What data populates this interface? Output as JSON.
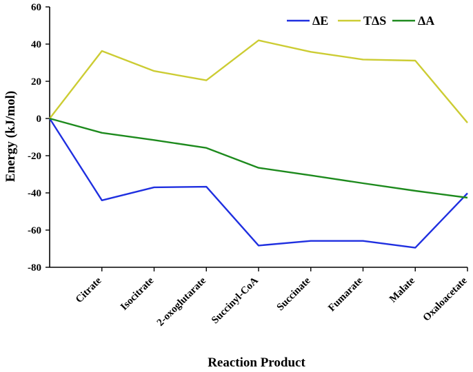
{
  "chart_data": {
    "type": "line",
    "title": "",
    "xlabel": "Reaction  Product",
    "ylabel": "Energy (kJ/mol)",
    "ylim": [
      -80,
      60
    ],
    "yticks": [
      "-80",
      "-60",
      "-40",
      "-20",
      "0",
      "20",
      "40",
      "60"
    ],
    "categories": [
      "",
      "Citrate",
      "Isocitrate",
      "2-oxoglutarate",
      "Succinyl-CoA",
      "Succinate",
      "Fumarate",
      "Malate",
      "Oxaloacetate"
    ],
    "grid": false,
    "legend_position": "top-right",
    "series": [
      {
        "name": "ΔE",
        "color": "#1f2fe0",
        "values": [
          0,
          -44,
          -37,
          -36.7,
          -68.3,
          -65.8,
          -65.8,
          -69.5,
          -40.2
        ]
      },
      {
        "name": "TΔS",
        "color": "#cccc33",
        "values": [
          0,
          36.3,
          25.5,
          20.5,
          42,
          35.8,
          31.7,
          31.1,
          -2.3
        ]
      },
      {
        "name": "ΔA",
        "color": "#1d8a1d",
        "values": [
          0,
          -7.7,
          -11.6,
          -15.8,
          -26.5,
          -30.6,
          -34.8,
          -38.9,
          -42.6
        ]
      }
    ]
  }
}
